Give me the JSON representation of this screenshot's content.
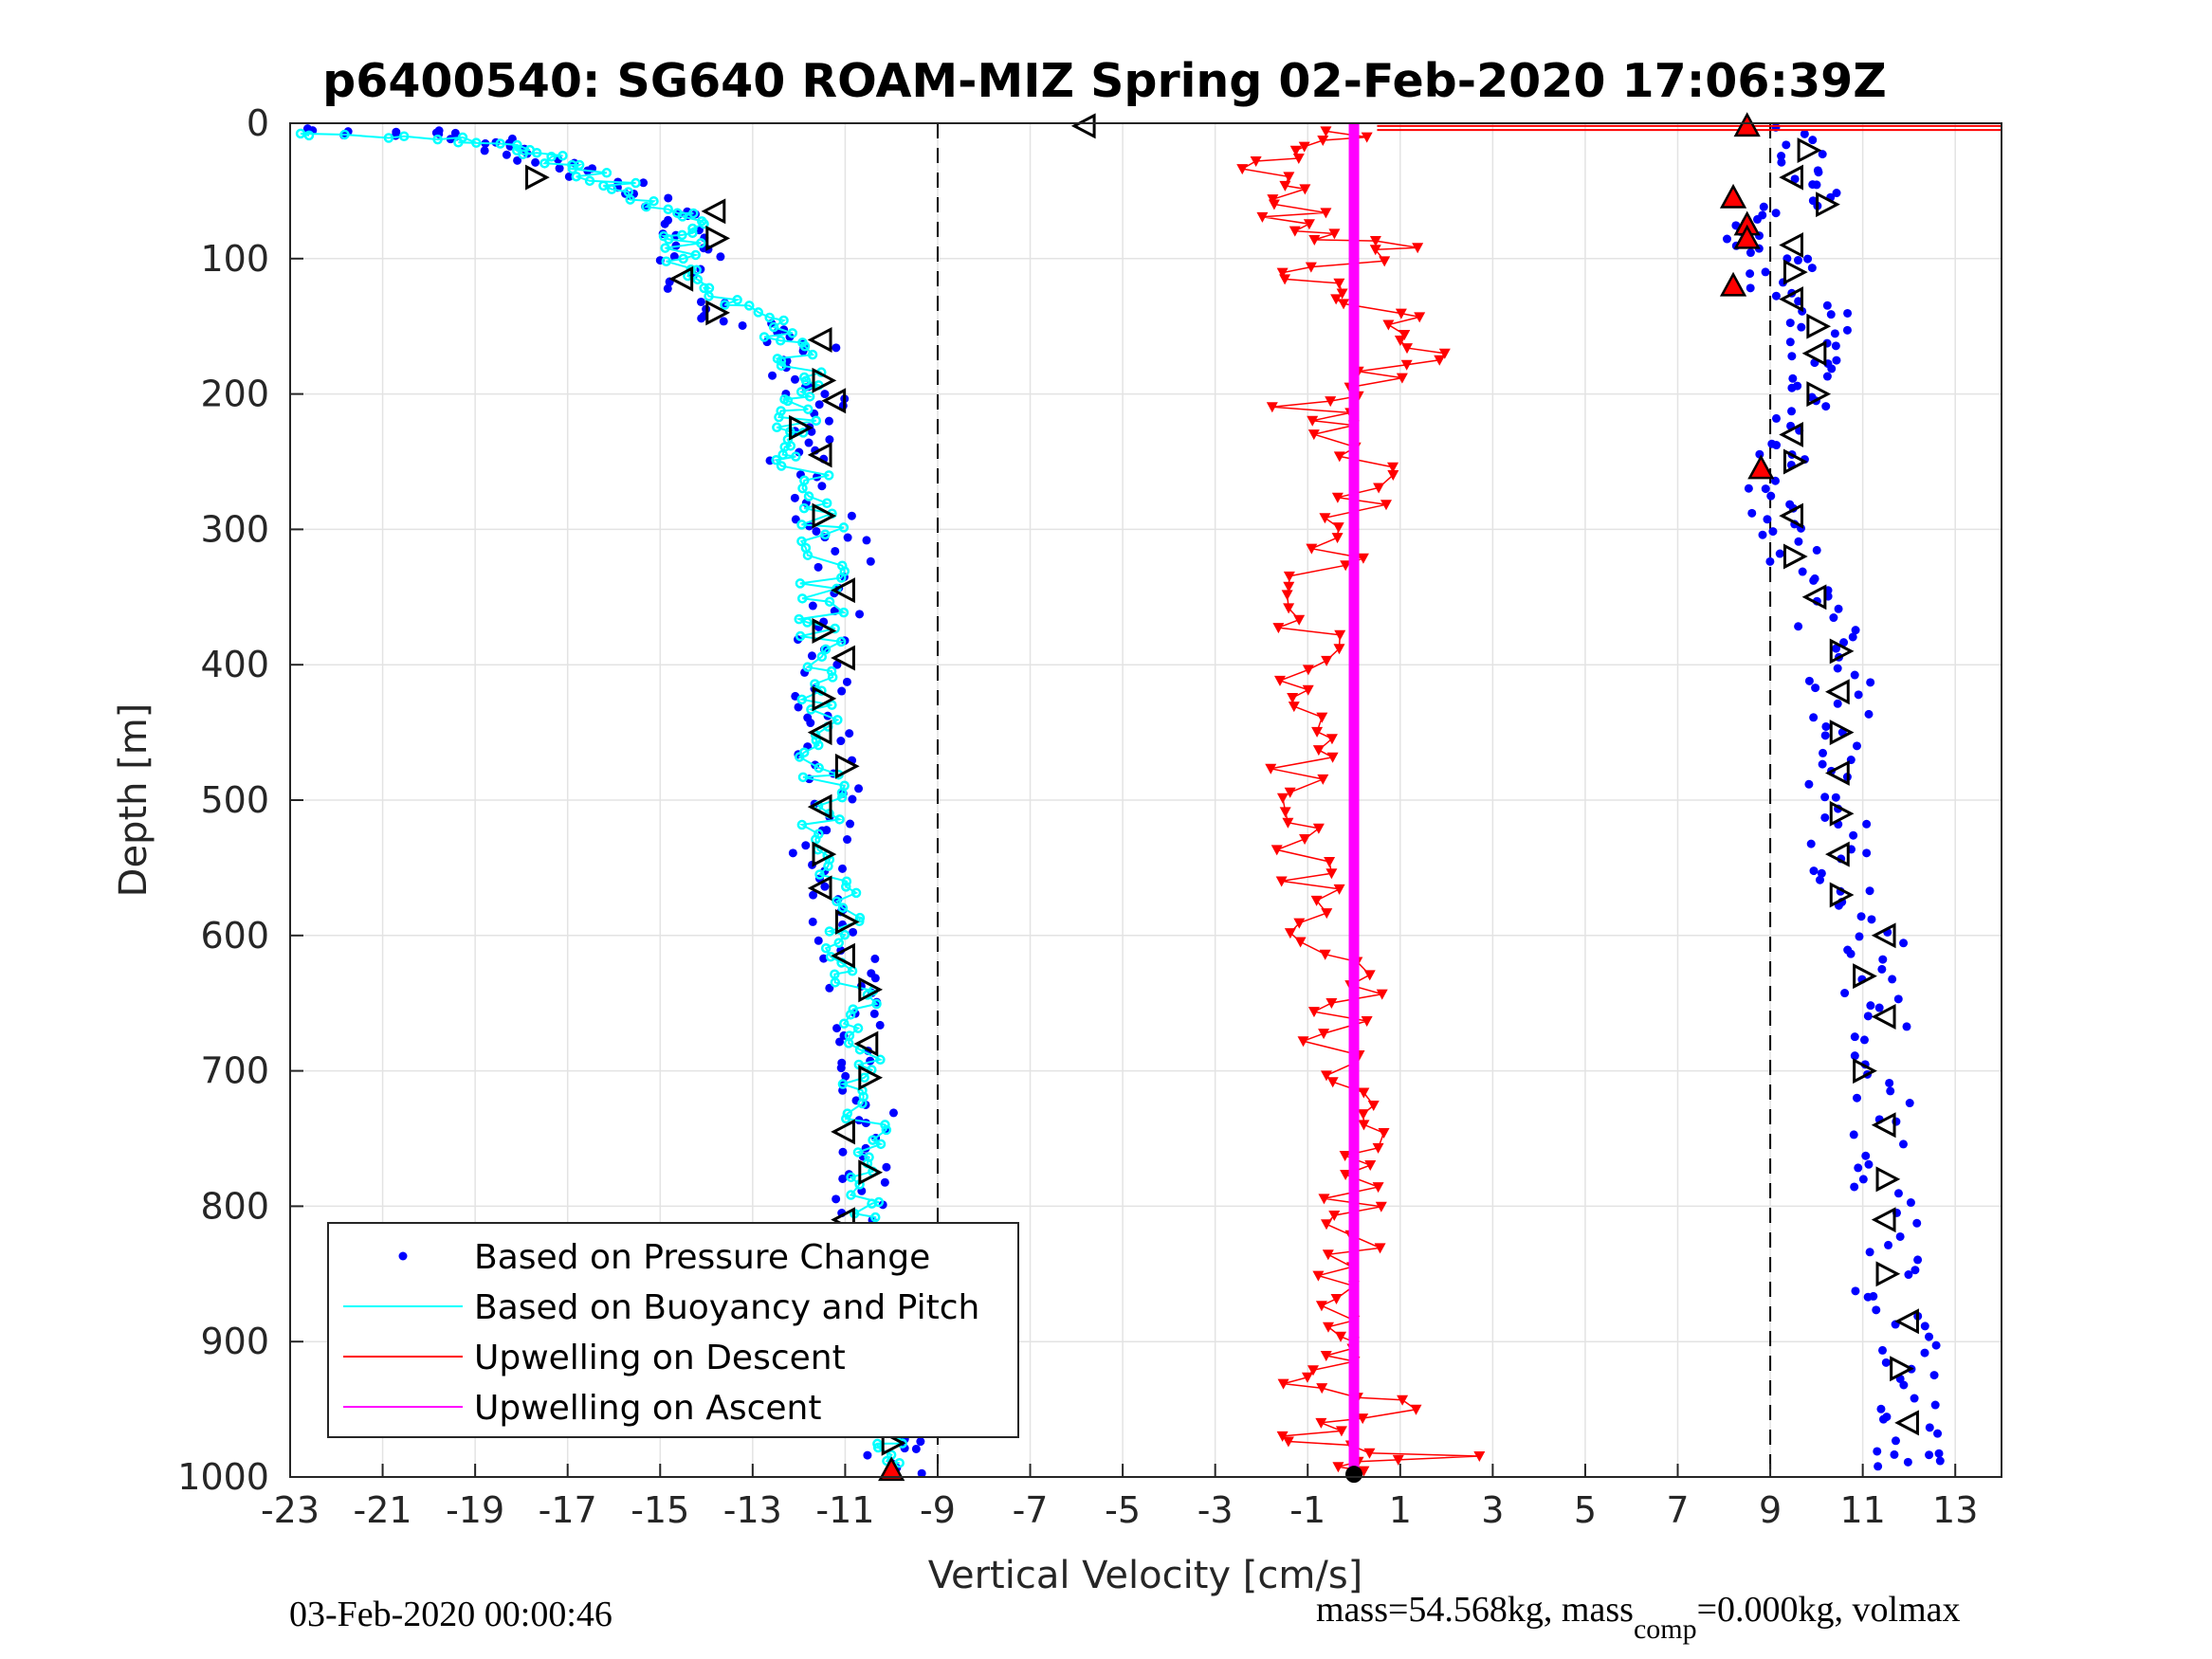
{
  "chart_data": {
    "type": "scatter",
    "title": "p6400540: SG640 ROAM-MIZ Spring 02-Feb-2020 17:06:39Z",
    "xlabel": "Vertical Velocity [cm/s]",
    "ylabel": "Depth [m]",
    "xlim": [
      -23,
      14
    ],
    "ylim": [
      0,
      1000
    ],
    "y_reversed": true,
    "grid": true,
    "x_ticks": [
      "-23",
      "-21",
      "-19",
      "-17",
      "-15",
      "-13",
      "-11",
      "-9",
      "-7",
      "-5",
      "-3",
      "-1",
      "1",
      "3",
      "5",
      "7",
      "9",
      "11",
      "13"
    ],
    "y_ticks": [
      "0",
      "100",
      "200",
      "300",
      "400",
      "500",
      "600",
      "700",
      "800",
      "900",
      "1000"
    ],
    "legend_placement": "bottom-left",
    "reference_lines_x": [
      -9,
      9
    ],
    "colors": {
      "pressure": "#0000ff",
      "buoyancy": "#00ffff",
      "descent": "#ff0000",
      "ascent": "#ff00ff",
      "marker_edge": "#000000"
    },
    "series": [
      {
        "name": "Based on Pressure Change",
        "style": "dots",
        "profiles": [
          {
            "label": "descent",
            "points": [
              [
                -22.5,
                5
              ],
              [
                -20,
                8
              ],
              [
                -19,
                12
              ],
              [
                -18,
                20
              ],
              [
                -17,
                30
              ],
              [
                -16,
                45
              ],
              [
                -15,
                60
              ],
              [
                -14.5,
                75
              ],
              [
                -14,
                90
              ],
              [
                -14.5,
                110
              ],
              [
                -14,
                140
              ],
              [
                -12.5,
                155
              ],
              [
                -11.5,
                165
              ],
              [
                -12,
                190
              ],
              [
                -11.5,
                205
              ],
              [
                -12,
                230
              ],
              [
                -12,
                250
              ],
              [
                -11.5,
                290
              ],
              [
                -11,
                310
              ],
              [
                -11,
                350
              ],
              [
                -11.5,
                380
              ],
              [
                -11.5,
                410
              ],
              [
                -11.5,
                440
              ],
              [
                -11.5,
                470
              ],
              [
                -11,
                500
              ],
              [
                -11.5,
                530
              ],
              [
                -11.5,
                560
              ],
              [
                -11,
                590
              ],
              [
                -11,
                620
              ],
              [
                -10.5,
                650
              ],
              [
                -10.5,
                680
              ],
              [
                -10.5,
                710
              ],
              [
                -10.5,
                740
              ],
              [
                -10.5,
                770
              ],
              [
                -10.5,
                800
              ],
              [
                -10,
                830
              ],
              [
                -10,
                860
              ],
              [
                -10,
                890
              ],
              [
                -10,
                920
              ],
              [
                -10,
                950
              ],
              [
                -10,
                975
              ],
              [
                -10,
                995
              ]
            ]
          },
          {
            "label": "ascent",
            "points": [
              [
                9.5,
                5
              ],
              [
                9.5,
                30
              ],
              [
                10,
                50
              ],
              [
                9,
                70
              ],
              [
                8.5,
                85
              ],
              [
                9.5,
                100
              ],
              [
                9,
                120
              ],
              [
                10,
                140
              ],
              [
                10,
                160
              ],
              [
                10,
                180
              ],
              [
                10,
                200
              ],
              [
                9.5,
                230
              ],
              [
                9,
                255
              ],
              [
                9,
                280
              ],
              [
                9.5,
                300
              ],
              [
                9.5,
                330
              ],
              [
                10,
                360
              ],
              [
                10.5,
                390
              ],
              [
                10.5,
                420
              ],
              [
                10.5,
                450
              ],
              [
                10.5,
                480
              ],
              [
                10.5,
                510
              ],
              [
                10.5,
                540
              ],
              [
                10.5,
                570
              ],
              [
                11.5,
                600
              ],
              [
                11,
                630
              ],
              [
                11.5,
                660
              ],
              [
                11,
                700
              ],
              [
                11.5,
                740
              ],
              [
                11.5,
                780
              ],
              [
                11.5,
                820
              ],
              [
                11.5,
                860
              ],
              [
                12,
                890
              ],
              [
                12,
                920
              ],
              [
                12,
                950
              ],
              [
                12,
                980
              ],
              [
                12,
                990
              ]
            ]
          }
        ]
      },
      {
        "name": "Based on Buoyancy and Pitch",
        "style": "line-circles",
        "profiles": [
          {
            "label": "descent",
            "points": [
              [
                -23,
                8
              ],
              [
                -19.5,
                12
              ],
              [
                -18,
                20
              ],
              [
                -17,
                30
              ],
              [
                -16,
                45
              ],
              [
                -15,
                60
              ],
              [
                -14.5,
                75
              ],
              [
                -14.5,
                90
              ],
              [
                -14.5,
                110
              ],
              [
                -13.8,
                130
              ],
              [
                -12.5,
                150
              ],
              [
                -12,
                170
              ],
              [
                -12,
                190
              ],
              [
                -12,
                210
              ],
              [
                -12,
                230
              ],
              [
                -12,
                250
              ],
              [
                -11.5,
                280
              ],
              [
                -11.5,
                310
              ],
              [
                -11.5,
                340
              ],
              [
                -11.5,
                370
              ],
              [
                -11.5,
                400
              ],
              [
                -11.5,
                430
              ],
              [
                -11.5,
                460
              ],
              [
                -11.5,
                490
              ],
              [
                -11.5,
                520
              ],
              [
                -11.2,
                550
              ],
              [
                -11,
                580
              ],
              [
                -11,
                610
              ],
              [
                -10.8,
                640
              ],
              [
                -10.8,
                670
              ],
              [
                -10.7,
                700
              ],
              [
                -10.6,
                730
              ],
              [
                -10.6,
                760
              ],
              [
                -10.5,
                790
              ],
              [
                -10.4,
                820
              ],
              [
                -10.3,
                850
              ],
              [
                -10.3,
                880
              ],
              [
                -10.2,
                910
              ],
              [
                -10.2,
                940
              ],
              [
                -10.2,
                970
              ],
              [
                -10.2,
                990
              ]
            ]
          }
        ]
      },
      {
        "name": "Upwelling on Descent",
        "style": "line-downtriangles",
        "profiles": [
          {
            "label": "descent",
            "points": [
              [
                0,
                5
              ],
              [
                -1.5,
                20
              ],
              [
                -2,
                40
              ],
              [
                -1,
                60
              ],
              [
                -1.5,
                80
              ],
              [
                1,
                90
              ],
              [
                -1,
                110
              ],
              [
                0,
                130
              ],
              [
                1,
                150
              ],
              [
                1.5,
                170
              ],
              [
                0.5,
                190
              ],
              [
                -1,
                210
              ],
              [
                -0.5,
                230
              ],
              [
                0.5,
                260
              ],
              [
                0,
                290
              ],
              [
                -0.5,
                320
              ],
              [
                -1,
                350
              ],
              [
                -1,
                380
              ],
              [
                -1,
                410
              ],
              [
                -1,
                440
              ],
              [
                -1,
                470
              ],
              [
                -1,
                500
              ],
              [
                -1,
                530
              ],
              [
                -1,
                560
              ],
              [
                -1,
                590
              ],
              [
                -0.5,
                620
              ],
              [
                0,
                650
              ],
              [
                -0.5,
                680
              ],
              [
                0,
                710
              ],
              [
                0.5,
                740
              ],
              [
                0,
                770
              ],
              [
                0,
                800
              ],
              [
                0,
                830
              ],
              [
                0,
                860
              ],
              [
                0,
                890
              ],
              [
                0,
                910
              ],
              [
                -2,
                930
              ],
              [
                1.5,
                950
              ],
              [
                -1.5,
                970
              ],
              [
                2,
                985
              ],
              [
                -0.5,
                995
              ]
            ]
          }
        ]
      },
      {
        "name": "Upwelling on Ascent",
        "style": "line",
        "profiles": [
          {
            "label": "ascent",
            "points": [
              [
                0,
                0
              ],
              [
                0,
                1000
              ]
            ]
          }
        ]
      }
    ],
    "surface_line": {
      "color": "#ff0000",
      "x_range": [
        0.5,
        14
      ],
      "depths": [
        2,
        5
      ]
    },
    "markers": {
      "open_triangles": [
        [
          -17.7,
          40
        ],
        [
          -13.8,
          65
        ],
        [
          -13.8,
          85
        ],
        [
          -14.5,
          115
        ],
        [
          -13.8,
          140
        ],
        [
          -11.5,
          160
        ],
        [
          -11.5,
          190
        ],
        [
          -11.2,
          205
        ],
        [
          -12,
          225
        ],
        [
          -11.5,
          245
        ],
        [
          -11.5,
          290
        ],
        [
          -11,
          345
        ],
        [
          -11.5,
          375
        ],
        [
          -11,
          395
        ],
        [
          -11.5,
          425
        ],
        [
          -11.5,
          450
        ],
        [
          -11,
          475
        ],
        [
          -11.5,
          505
        ],
        [
          -11.5,
          540
        ],
        [
          -11.5,
          565
        ],
        [
          -11,
          590
        ],
        [
          -11,
          615
        ],
        [
          -10.5,
          640
        ],
        [
          -10.5,
          680
        ],
        [
          -10.5,
          705
        ],
        [
          -11,
          745
        ],
        [
          -10.5,
          775
        ],
        [
          -11,
          810
        ],
        [
          -10.2,
          840
        ],
        [
          -10.2,
          875
        ],
        [
          -10.2,
          910
        ],
        [
          -10.2,
          940
        ],
        [
          -10,
          975
        ],
        [
          -5.8,
          2
        ],
        [
          9.8,
          20
        ],
        [
          9.5,
          40
        ],
        [
          10.2,
          60
        ],
        [
          9.5,
          90
        ],
        [
          9.5,
          110
        ],
        [
          9.5,
          130
        ],
        [
          10,
          150
        ],
        [
          10,
          170
        ],
        [
          10,
          200
        ],
        [
          9.5,
          230
        ],
        [
          9.5,
          250
        ],
        [
          9.5,
          290
        ],
        [
          9.5,
          320
        ],
        [
          10,
          350
        ],
        [
          10.5,
          390
        ],
        [
          10.5,
          420
        ],
        [
          10.5,
          450
        ],
        [
          10.5,
          480
        ],
        [
          10.5,
          510
        ],
        [
          10.5,
          540
        ],
        [
          10.5,
          570
        ],
        [
          11.5,
          600
        ],
        [
          11,
          630
        ],
        [
          11.5,
          660
        ],
        [
          11,
          700
        ],
        [
          11.5,
          740
        ],
        [
          11.5,
          780
        ],
        [
          11.5,
          810
        ],
        [
          11.5,
          850
        ],
        [
          12,
          885
        ],
        [
          11.8,
          920
        ],
        [
          12,
          960
        ]
      ],
      "filled_red_triangles": [
        [
          -10,
          995
        ],
        [
          8.5,
          2
        ],
        [
          8.2,
          55
        ],
        [
          8.5,
          75
        ],
        [
          8.5,
          85
        ],
        [
          8.2,
          120
        ],
        [
          8.8,
          255
        ]
      ],
      "start_marker": [
        0,
        998
      ]
    },
    "legend": [
      "Based on Pressure Change",
      "Based on Buoyancy and Pitch",
      "Upwelling on Descent",
      "Upwelling on Ascent"
    ]
  },
  "footer": {
    "left_date": "03-Feb-2020 00:00:46",
    "right_prefix": "mass=54.568kg, mass",
    "right_sub": "comp",
    "right_suffix": "=0.000kg, volmax"
  }
}
